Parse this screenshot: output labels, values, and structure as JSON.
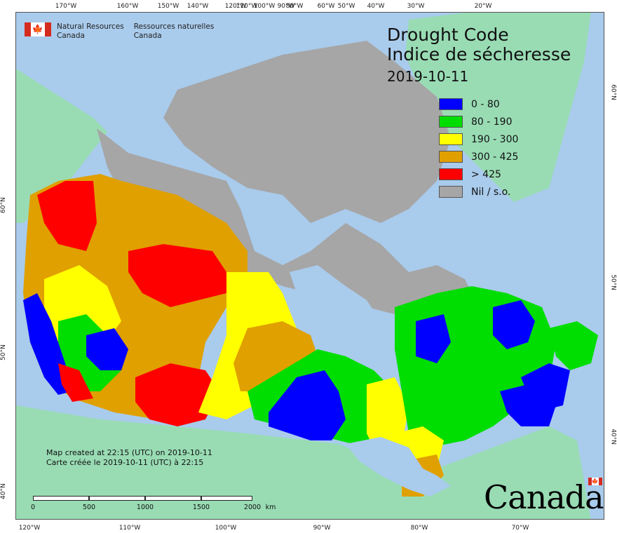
{
  "graticule": {
    "top": [
      "170°W",
      "160°W",
      "150°W",
      "140°W",
      "120°W",
      "110°W",
      "100°W",
      "90°W",
      "80°W",
      "60°W",
      "50°W",
      "40°W",
      "30°W",
      "20°W"
    ],
    "bottom": [
      "120°W",
      "110°W",
      "100°W",
      "90°W",
      "80°W",
      "70°W"
    ],
    "left": [
      "60°N",
      "50°N",
      "40°N"
    ],
    "right": [
      "60°N",
      "50°N",
      "40°N"
    ]
  },
  "agency": {
    "en_line1": "Natural Resources",
    "en_line2": "Canada",
    "fr_line1": "Ressources naturelles",
    "fr_line2": "Canada",
    "flag_glyph": "🍁"
  },
  "title": {
    "en": "Drought Code",
    "fr": "Indice de sécheresse",
    "date": "2019-10-11"
  },
  "legend": [
    {
      "label": "0 - 80",
      "color": "#0000ff"
    },
    {
      "label": "80 - 190",
      "color": "#00dd00"
    },
    {
      "label": "190 - 300",
      "color": "#ffff00"
    },
    {
      "label": "300 - 425",
      "color": "#e0a000"
    },
    {
      "label": "> 425",
      "color": "#ff0000"
    },
    {
      "label": "Nil / s.o.",
      "color": "#a6a6a6"
    }
  ],
  "created": {
    "en": "Map created at 22:15 (UTC) on 2019-10-11",
    "fr": "Carte créée le 2019-10-11 (UTC) à 22:15"
  },
  "scale": {
    "labels": [
      "0",
      "500",
      "1000",
      "1500",
      "2000"
    ],
    "unit": "km"
  },
  "wordmark": {
    "text": "Canada",
    "flag_glyph": "🍁"
  },
  "colors": {
    "water": "#a9cbec",
    "land_outside": "#99dcb4",
    "nil": "#a6a6a6"
  }
}
